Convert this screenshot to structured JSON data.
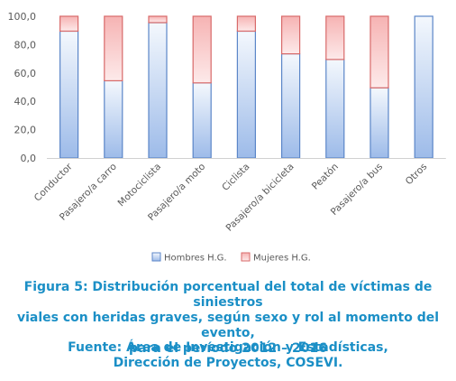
{
  "chart_data": {
    "type": "bar",
    "stacked": true,
    "categories": [
      "Conductor",
      "Pasajero/a carro",
      "Motociclista",
      "Pasajero/a moto",
      "Ciclista",
      "Pasajero/a bicicleta",
      "Peatón",
      "Pasajero/a bus",
      "Otros"
    ],
    "series": [
      {
        "name": "Hombres H.G.",
        "values": [
          89.5,
          54.5,
          95.5,
          53.0,
          89.5,
          73.5,
          69.5,
          49.5,
          100.0
        ],
        "color": "#a9c4ee"
      },
      {
        "name": "Mujeres H.G.",
        "values": [
          10.5,
          45.5,
          4.5,
          47.0,
          10.5,
          26.5,
          30.5,
          50.5,
          0.0
        ],
        "color": "#f2a3a3"
      }
    ],
    "yticks": [
      "0,0",
      "20,0",
      "40,0",
      "60,0",
      "80,0",
      "100,0"
    ],
    "ylim": [
      0,
      100
    ],
    "grid": false,
    "legend_position": "bottom"
  },
  "caption": {
    "line1": "Figura 5: Distribución porcentual del total de víctimas de siniestros",
    "line2": "viales con heridas graves, según sexo y rol al momento del evento,",
    "line3": "para el período 2012 – 2016"
  },
  "source": {
    "line1": "Fuente: Área de Investigación y Estadísticas,",
    "line2": "Dirección de Proyectos, COSEVI."
  }
}
